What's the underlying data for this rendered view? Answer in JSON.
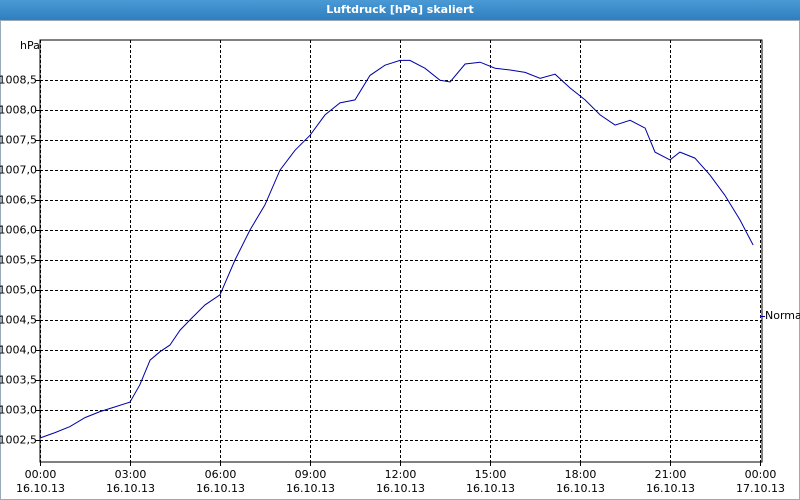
{
  "chart_data": {
    "type": "line",
    "title": "Luftdruck [hPa] skaliert",
    "ylabel": "hPa",
    "x": [
      0,
      0.5,
      1,
      1.5,
      2,
      2.5,
      3,
      3.33,
      3.67,
      4,
      4.33,
      4.67,
      5,
      5.5,
      6,
      6.5,
      7,
      7.5,
      8,
      8.5,
      9,
      9.5,
      10,
      10.5,
      11,
      11.5,
      12,
      12.33,
      12.83,
      13.33,
      13.67,
      14.17,
      14.67,
      15.17,
      15.67,
      16.17,
      16.67,
      17.17,
      17.67,
      18.17,
      18.67,
      19.17,
      19.67,
      20.17,
      20.5,
      21,
      21.33,
      21.83,
      22.33,
      22.83,
      23.33,
      23.77
    ],
    "series": [
      {
        "name": "Normal",
        "color": "#0000a8",
        "values": [
          1002.53,
          1002.62,
          1002.72,
          1002.87,
          1002.97,
          1003.05,
          1003.13,
          1003.42,
          1003.83,
          1003.97,
          1004.08,
          1004.33,
          1004.5,
          1004.75,
          1004.92,
          1005.5,
          1006.0,
          1006.42,
          1007.0,
          1007.33,
          1007.58,
          1007.92,
          1008.12,
          1008.17,
          1008.58,
          1008.75,
          1008.83,
          1008.83,
          1008.7,
          1008.5,
          1008.47,
          1008.77,
          1008.8,
          1008.7,
          1008.67,
          1008.63,
          1008.53,
          1008.6,
          1008.37,
          1008.17,
          1007.92,
          1007.75,
          1007.83,
          1007.7,
          1007.3,
          1007.17,
          1007.3,
          1007.2,
          1006.92,
          1006.58,
          1006.17,
          1005.75
        ]
      }
    ],
    "xlim": [
      0,
      24
    ],
    "xticks": [
      {
        "value": 0,
        "label": "00:00\n16.10.13"
      },
      {
        "value": 3,
        "label": "03:00\n16.10.13"
      },
      {
        "value": 6,
        "label": "06:00\n16.10.13"
      },
      {
        "value": 9,
        "label": "09:00\n16.10.13"
      },
      {
        "value": 12,
        "label": "12:00\n16.10.13"
      },
      {
        "value": 15,
        "label": "15:00\n16.10.13"
      },
      {
        "value": 18,
        "label": "18:00\n16.10.13"
      },
      {
        "value": 21,
        "label": "21:00\n16.10.13"
      },
      {
        "value": 24,
        "label": "00:00\n17.10.13"
      }
    ],
    "ylim": [
      1002.13,
      1009.17
    ],
    "yticks": [
      {
        "value": 1002.5,
        "label": "1002,5"
      },
      {
        "value": 1003.0,
        "label": "1003,0"
      },
      {
        "value": 1003.5,
        "label": "1003,5"
      },
      {
        "value": 1004.0,
        "label": "1004,0"
      },
      {
        "value": 1004.5,
        "label": "1004,5"
      },
      {
        "value": 1005.0,
        "label": "1005,0"
      },
      {
        "value": 1005.5,
        "label": "1005,5"
      },
      {
        "value": 1006.0,
        "label": "1006,0"
      },
      {
        "value": 1006.5,
        "label": "1006,5"
      },
      {
        "value": 1007.0,
        "label": "1007,0"
      },
      {
        "value": 1007.5,
        "label": "1007,5"
      },
      {
        "value": 1008.0,
        "label": "1008,0"
      },
      {
        "value": 1008.5,
        "label": "1008,5"
      }
    ],
    "grid": true
  }
}
